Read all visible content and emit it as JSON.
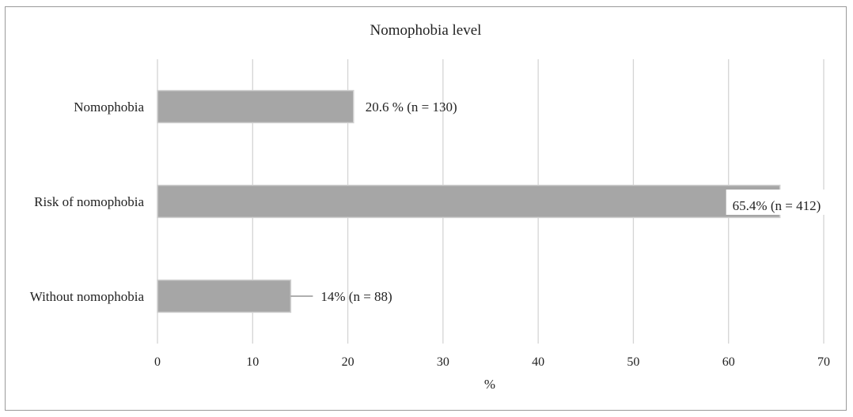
{
  "chart_data": {
    "type": "bar",
    "orientation": "horizontal",
    "title": "Nomophobia level",
    "xlabel": "%",
    "ylabel": "",
    "xlim": [
      0,
      70
    ],
    "xticks": [
      0,
      10,
      20,
      30,
      40,
      50,
      60,
      70
    ],
    "grid": true,
    "legend": "none",
    "categories": [
      "Nomophobia",
      "Risk of nomophobia",
      "Without nomophobia"
    ],
    "values": [
      20.6,
      65.4,
      14
    ],
    "data_labels": [
      "20.6  % (n = 130)",
      "65.4%  (n = 412)",
      "14%  (n = 88)"
    ],
    "colors": {
      "bar": "#a6a6a6",
      "bar_edge": "#d0d0d0",
      "grid": "#d4d4d4",
      "text": "#222222"
    }
  }
}
